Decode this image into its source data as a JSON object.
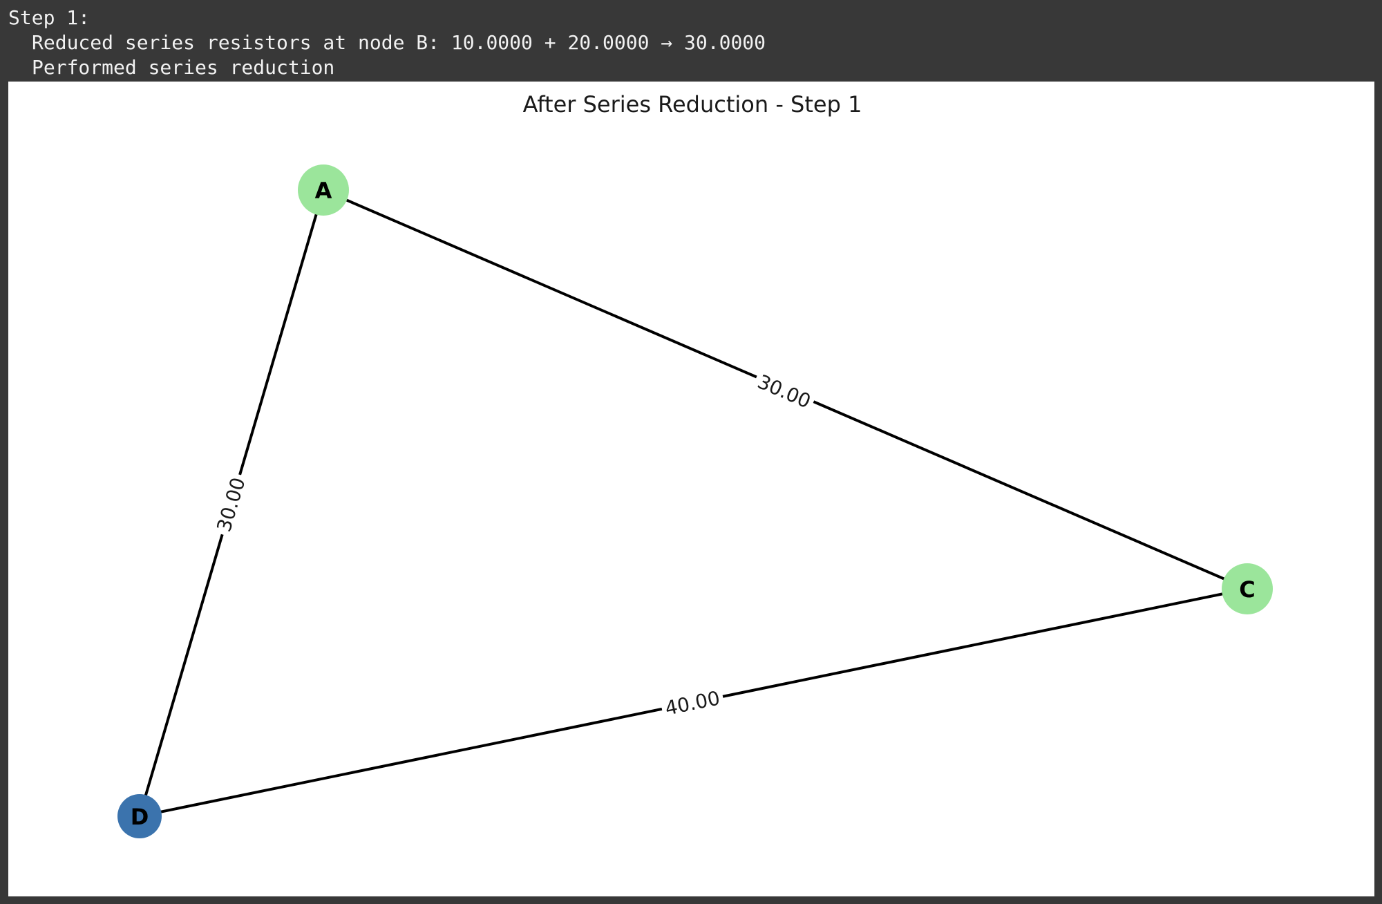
{
  "console": {
    "lines": [
      "Step 1:",
      "Reduced series resistors at node B: 10.0000 + 20.0000 → 30.0000",
      "Performed series reduction"
    ]
  },
  "figure": {
    "title": "After Series Reduction - Step 1"
  },
  "graph": {
    "nodes": [
      {
        "id": "A",
        "label": "A",
        "color": "#9be59b"
      },
      {
        "id": "C",
        "label": "C",
        "color": "#9be59b"
      },
      {
        "id": "D",
        "label": "D",
        "color": "#3b73ad"
      }
    ],
    "edges": [
      {
        "from": "A",
        "to": "C",
        "label": "30.00"
      },
      {
        "from": "A",
        "to": "D",
        "label": "30.00"
      },
      {
        "from": "D",
        "to": "C",
        "label": "40.00"
      }
    ],
    "edge_color": "#000000"
  }
}
